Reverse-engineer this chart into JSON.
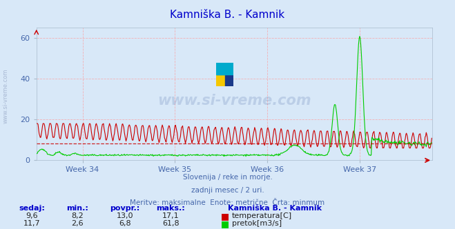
{
  "title": "Kamniška B. - Kamnik",
  "title_color": "#0000cc",
  "bg_color": "#d8e8f8",
  "plot_bg_color": "#d8e8f8",
  "grid_color": "#ff9999",
  "x_tick_labels": [
    "Week 34",
    "Week 35",
    "Week 36",
    "Week 37"
  ],
  "y_ticks": [
    0,
    20,
    40,
    60
  ],
  "y_min": 0,
  "y_max": 65,
  "x_min": 0,
  "x_max": 720,
  "temp_color": "#cc0000",
  "flow_color": "#00cc00",
  "minline_color": "#cc0000",
  "minline_value": 8.2,
  "watermark_text": "www.si-vreme.com",
  "watermark_color": "#1a3a8a",
  "watermark_alpha": 0.15,
  "subtitle_lines": [
    "Slovenija / reke in morje.",
    "zadnji mesec / 2 uri.",
    "Meritve: maksimalne  Enote: metrične  Črta: minmum"
  ],
  "subtitle_color": "#4466aa",
  "footer_label_color": "#0000cc",
  "footer_headers": [
    "sedaj:",
    "min.:",
    "povpr.:",
    "maks.:"
  ],
  "footer_station": "Kamniška B. - Kamnik",
  "footer_temp": [
    9.6,
    8.2,
    13.0,
    17.1
  ],
  "footer_flow": [
    11.7,
    2.6,
    6.8,
    61.8
  ],
  "legend_temp": "temperatura[C]",
  "legend_flow": "pretok[m3/s]",
  "axis_label_color": "#4466aa",
  "num_points": 720,
  "left_watermark": "www.si-vreme.com"
}
